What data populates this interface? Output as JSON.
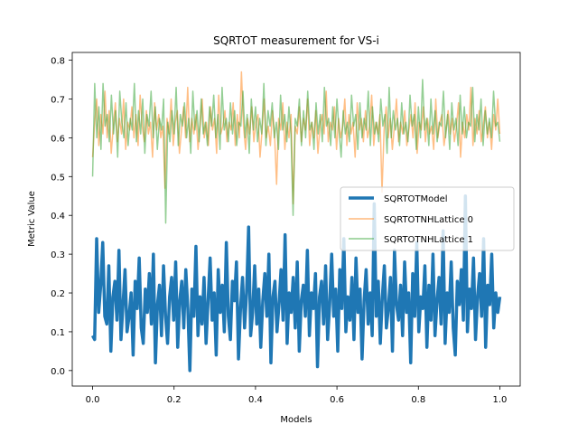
{
  "chart_data": {
    "type": "line",
    "title": "SQRTOT measurement for VS-i",
    "xlabel": "Models",
    "ylabel": "Metric Value",
    "xlim": [
      -0.05,
      1.05
    ],
    "ylim": [
      -0.04,
      0.82
    ],
    "x_ticks": [
      "0.0",
      "0.2",
      "0.4",
      "0.6",
      "0.8",
      "1.0"
    ],
    "y_ticks": [
      "0.0",
      "0.1",
      "0.2",
      "0.3",
      "0.4",
      "0.5",
      "0.6",
      "0.7",
      "0.8"
    ],
    "grid": false,
    "legend_position": "center-right",
    "series": [
      {
        "name": "SQRTOTModel",
        "color": "#1f77b4",
        "style": "thick solid",
        "points": 200,
        "x_range": [
          0.0,
          1.0
        ],
        "approx_range": [
          0.0,
          0.46
        ],
        "approx_mean": 0.16,
        "values": [
          0.09,
          0.08,
          0.34,
          0.15,
          0.22,
          0.33,
          0.14,
          0.12,
          0.27,
          0.05,
          0.19,
          0.23,
          0.13,
          0.31,
          0.08,
          0.17,
          0.26,
          0.1,
          0.14,
          0.2,
          0.04,
          0.23,
          0.16,
          0.29,
          0.11,
          0.07,
          0.21,
          0.15,
          0.25,
          0.12,
          0.3,
          0.02,
          0.17,
          0.22,
          0.09,
          0.27,
          0.14,
          0.07,
          0.19,
          0.24,
          0.13,
          0.28,
          0.06,
          0.18,
          0.23,
          0.11,
          0.26,
          0.16,
          0.0,
          0.21,
          0.14,
          0.32,
          0.09,
          0.19,
          0.12,
          0.24,
          0.07,
          0.18,
          0.29,
          0.13,
          0.2,
          0.04,
          0.26,
          0.15,
          0.22,
          0.1,
          0.33,
          0.14,
          0.08,
          0.23,
          0.18,
          0.28,
          0.03,
          0.16,
          0.24,
          0.11,
          0.2,
          0.37,
          0.09,
          0.15,
          0.27,
          0.12,
          0.21,
          0.06,
          0.18,
          0.25,
          0.14,
          0.3,
          0.02,
          0.19,
          0.23,
          0.1,
          0.17,
          0.26,
          0.13,
          0.35,
          0.07,
          0.2,
          0.15,
          0.24,
          0.11,
          0.28,
          0.05,
          0.18,
          0.22,
          0.14,
          0.31,
          0.09,
          0.2,
          0.16,
          0.25,
          0.01,
          0.19,
          0.23,
          0.12,
          0.27,
          0.08,
          0.17,
          0.3,
          0.14,
          0.21,
          0.05,
          0.26,
          0.16,
          0.34,
          0.1,
          0.19,
          0.13,
          0.24,
          0.08,
          0.29,
          0.15,
          0.21,
          0.03,
          0.18,
          0.26,
          0.12,
          0.2,
          0.09,
          0.43,
          0.14,
          0.23,
          0.07,
          0.19,
          0.27,
          0.11,
          0.16,
          0.24,
          0.05,
          0.31,
          0.17,
          0.13,
          0.22,
          0.09,
          0.28,
          0.15,
          0.2,
          0.02,
          0.25,
          0.14,
          0.33,
          0.1,
          0.19,
          0.16,
          0.27,
          0.06,
          0.22,
          0.13,
          0.3,
          0.09,
          0.18,
          0.24,
          0.12,
          0.36,
          0.07,
          0.2,
          0.15,
          0.28,
          0.11,
          0.04,
          0.23,
          0.17,
          0.26,
          0.13,
          0.45,
          0.1,
          0.21,
          0.16,
          0.29,
          0.08,
          0.19,
          0.25,
          0.14,
          0.34,
          0.06,
          0.22,
          0.17,
          0.3,
          0.11,
          0.2,
          0.15,
          0.19
        ]
      },
      {
        "name": "SQRTOTNHLattice 0",
        "color": "#ff7f0e",
        "style": "thin solid, semi-transparent",
        "points": 200,
        "x_range": [
          0.0,
          1.0
        ],
        "approx_range": [
          0.4,
          0.78
        ],
        "approx_mean": 0.61,
        "values": [
          0.55,
          0.64,
          0.7,
          0.58,
          0.66,
          0.61,
          0.72,
          0.6,
          0.67,
          0.56,
          0.63,
          0.69,
          0.59,
          0.65,
          0.61,
          0.7,
          0.57,
          0.64,
          0.62,
          0.68,
          0.6,
          0.66,
          0.58,
          0.71,
          0.63,
          0.59,
          0.67,
          0.61,
          0.64,
          0.55,
          0.69,
          0.62,
          0.66,
          0.6,
          0.63,
          0.47,
          0.65,
          0.61,
          0.7,
          0.58,
          0.64,
          0.67,
          0.56,
          0.62,
          0.68,
          0.6,
          0.73,
          0.59,
          0.65,
          0.61,
          0.66,
          0.57,
          0.63,
          0.7,
          0.6,
          0.64,
          0.58,
          0.68,
          0.62,
          0.65,
          0.56,
          0.71,
          0.61,
          0.63,
          0.67,
          0.59,
          0.64,
          0.62,
          0.69,
          0.58,
          0.66,
          0.6,
          0.77,
          0.63,
          0.57,
          0.65,
          0.61,
          0.68,
          0.59,
          0.64,
          0.66,
          0.55,
          0.62,
          0.7,
          0.6,
          0.63,
          0.58,
          0.67,
          0.61,
          0.48,
          0.65,
          0.62,
          0.69,
          0.57,
          0.64,
          0.6,
          0.66,
          0.43,
          0.63,
          0.61,
          0.68,
          0.59,
          0.65,
          0.62,
          0.7,
          0.58,
          0.64,
          0.6,
          0.67,
          0.56,
          0.63,
          0.66,
          0.61,
          0.72,
          0.59,
          0.64,
          0.62,
          0.68,
          0.57,
          0.65,
          0.6,
          0.63,
          0.7,
          0.58,
          0.66,
          0.61,
          0.64,
          0.55,
          0.69,
          0.62,
          0.65,
          0.59,
          0.67,
          0.6,
          0.63,
          0.71,
          0.58,
          0.64,
          0.61,
          0.66,
          0.46,
          0.62,
          0.68,
          0.6,
          0.65,
          0.57,
          0.63,
          0.7,
          0.59,
          0.64,
          0.61,
          0.67,
          0.58,
          0.62,
          0.66,
          0.6,
          0.69,
          0.56,
          0.64,
          0.62,
          0.68,
          0.59,
          0.65,
          0.61,
          0.63,
          0.57,
          0.7,
          0.6,
          0.64,
          0.66,
          0.58,
          0.62,
          0.67,
          0.61,
          0.65,
          0.59,
          0.63,
          0.69,
          0.55,
          0.64,
          0.6,
          0.66,
          0.62,
          0.73,
          0.58,
          0.65,
          0.61,
          0.67,
          0.59,
          0.63,
          0.68,
          0.6,
          0.64,
          0.57,
          0.66,
          0.62,
          0.7,
          0.61
        ]
      },
      {
        "name": "SQRTOTNHLattice 1",
        "color": "#2ca02c",
        "style": "thin solid, semi-transparent",
        "points": 200,
        "x_range": [
          0.0,
          1.0
        ],
        "approx_range": [
          0.37,
          0.77
        ],
        "approx_mean": 0.62,
        "values": [
          0.5,
          0.74,
          0.6,
          0.68,
          0.57,
          0.74,
          0.63,
          0.66,
          0.59,
          0.71,
          0.61,
          0.67,
          0.55,
          0.72,
          0.64,
          0.6,
          0.69,
          0.58,
          0.65,
          0.62,
          0.74,
          0.59,
          0.67,
          0.61,
          0.7,
          0.56,
          0.66,
          0.63,
          0.72,
          0.6,
          0.68,
          0.57,
          0.65,
          0.62,
          0.7,
          0.38,
          0.64,
          0.59,
          0.67,
          0.61,
          0.73,
          0.58,
          0.66,
          0.63,
          0.69,
          0.6,
          0.65,
          0.56,
          0.72,
          0.62,
          0.67,
          0.59,
          0.7,
          0.61,
          0.64,
          0.58,
          0.68,
          0.63,
          0.71,
          0.6,
          0.66,
          0.57,
          0.73,
          0.62,
          0.65,
          0.59,
          0.69,
          0.61,
          0.67,
          0.58,
          0.64,
          0.63,
          0.72,
          0.6,
          0.66,
          0.56,
          0.7,
          0.62,
          0.68,
          0.59,
          0.65,
          0.61,
          0.74,
          0.58,
          0.67,
          0.63,
          0.69,
          0.6,
          0.64,
          0.57,
          0.71,
          0.62,
          0.66,
          0.59,
          0.68,
          0.61,
          0.4,
          0.65,
          0.63,
          0.7,
          0.58,
          0.67,
          0.6,
          0.72,
          0.62,
          0.64,
          0.57,
          0.69,
          0.61,
          0.66,
          0.59,
          0.73,
          0.63,
          0.65,
          0.58,
          0.68,
          0.6,
          0.7,
          0.62,
          0.55,
          0.67,
          0.61,
          0.64,
          0.59,
          0.71,
          0.63,
          0.66,
          0.57,
          0.69,
          0.6,
          0.65,
          0.62,
          0.72,
          0.58,
          0.68,
          0.61,
          0.64,
          0.59,
          0.7,
          0.63,
          0.66,
          0.56,
          0.73,
          0.6,
          0.67,
          0.62,
          0.65,
          0.58,
          0.69,
          0.61,
          0.64,
          0.59,
          0.71,
          0.63,
          0.66,
          0.57,
          0.68,
          0.6,
          0.75,
          0.62,
          0.65,
          0.58,
          0.7,
          0.61,
          0.67,
          0.59,
          0.64,
          0.63,
          0.72,
          0.6,
          0.66,
          0.57,
          0.69,
          0.62,
          0.65,
          0.58,
          0.71,
          0.61,
          0.68,
          0.6,
          0.64,
          0.63,
          0.73,
          0.59,
          0.66,
          0.62,
          0.7,
          0.58,
          0.67,
          0.61,
          0.65,
          0.6,
          0.72,
          0.63,
          0.64,
          0.59
        ]
      }
    ]
  }
}
